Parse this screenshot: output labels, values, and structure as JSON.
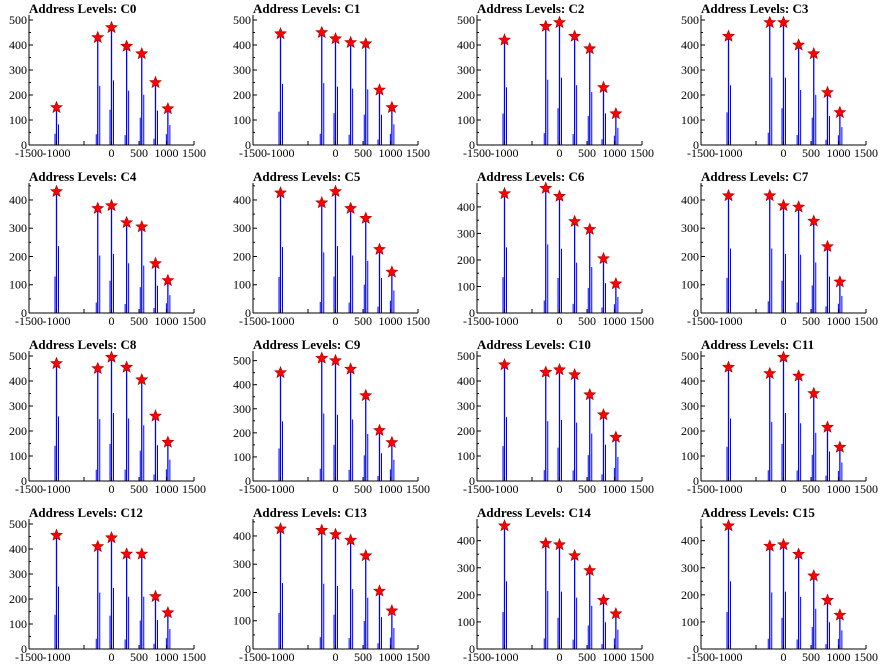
{
  "title_prefix": "Address Levels: ",
  "colors": {
    "spike": "#0000ff",
    "spike_dark": "#000000",
    "star_fill": "#ff0000",
    "star_stroke": "#aa0000",
    "axis": "#000000"
  },
  "x_ticks": [
    -1500,
    -1000,
    -500,
    0,
    500,
    1000,
    1500
  ],
  "x_tick_labels": [
    "-1500",
    "-1000",
    "",
    "0",
    "500",
    "1000",
    "1500"
  ],
  "chart_data": [
    {
      "type": "scatter",
      "title": "Address Levels: C0",
      "xlim": [
        -1500,
        1500
      ],
      "ylim": [
        0,
        520
      ],
      "yticks": [
        0,
        100,
        200,
        300,
        400,
        500
      ],
      "levels": [
        {
          "x": -1000,
          "y": 150
        },
        {
          "x": -250,
          "y": 430
        },
        {
          "x": 0,
          "y": 470
        },
        {
          "x": 275,
          "y": 395
        },
        {
          "x": 550,
          "y": 365
        },
        {
          "x": 800,
          "y": 250
        },
        {
          "x": 1025,
          "y": 145
        }
      ]
    },
    {
      "type": "scatter",
      "title": "Address Levels: C1",
      "xlim": [
        -1500,
        1500
      ],
      "ylim": [
        0,
        520
      ],
      "yticks": [
        0,
        100,
        200,
        300,
        400,
        500
      ],
      "levels": [
        {
          "x": -1000,
          "y": 445
        },
        {
          "x": -250,
          "y": 450
        },
        {
          "x": 0,
          "y": 425
        },
        {
          "x": 275,
          "y": 410
        },
        {
          "x": 550,
          "y": 405
        },
        {
          "x": 800,
          "y": 220
        },
        {
          "x": 1025,
          "y": 150
        }
      ]
    },
    {
      "type": "scatter",
      "title": "Address Levels: C2",
      "xlim": [
        -1500,
        1500
      ],
      "ylim": [
        0,
        520
      ],
      "yticks": [
        0,
        100,
        200,
        300,
        400,
        500
      ],
      "levels": [
        {
          "x": -1000,
          "y": 420
        },
        {
          "x": -250,
          "y": 475
        },
        {
          "x": 0,
          "y": 490
        },
        {
          "x": 275,
          "y": 435
        },
        {
          "x": 550,
          "y": 385
        },
        {
          "x": 800,
          "y": 230
        },
        {
          "x": 1025,
          "y": 125
        }
      ]
    },
    {
      "type": "scatter",
      "title": "Address Levels: C3",
      "xlim": [
        -1500,
        1500
      ],
      "ylim": [
        0,
        520
      ],
      "yticks": [
        0,
        100,
        200,
        300,
        400,
        500
      ],
      "levels": [
        {
          "x": -1000,
          "y": 435
        },
        {
          "x": -250,
          "y": 490
        },
        {
          "x": 0,
          "y": 490
        },
        {
          "x": 275,
          "y": 400
        },
        {
          "x": 550,
          "y": 365
        },
        {
          "x": 800,
          "y": 210
        },
        {
          "x": 1025,
          "y": 130
        }
      ]
    },
    {
      "type": "scatter",
      "title": "Address Levels: C4",
      "xlim": [
        -1500,
        1500
      ],
      "ylim": [
        0,
        460
      ],
      "yticks": [
        0,
        100,
        200,
        300,
        400
      ],
      "levels": [
        {
          "x": -1000,
          "y": 430
        },
        {
          "x": -250,
          "y": 370
        },
        {
          "x": 0,
          "y": 380
        },
        {
          "x": 275,
          "y": 320
        },
        {
          "x": 550,
          "y": 305
        },
        {
          "x": 800,
          "y": 175
        },
        {
          "x": 1025,
          "y": 115
        }
      ]
    },
    {
      "type": "scatter",
      "title": "Address Levels: C5",
      "xlim": [
        -1500,
        1500
      ],
      "ylim": [
        0,
        460
      ],
      "yticks": [
        0,
        100,
        200,
        300,
        400
      ],
      "levels": [
        {
          "x": -1000,
          "y": 425
        },
        {
          "x": -250,
          "y": 390
        },
        {
          "x": 0,
          "y": 430
        },
        {
          "x": 275,
          "y": 370
        },
        {
          "x": 550,
          "y": 335
        },
        {
          "x": 800,
          "y": 225
        },
        {
          "x": 1025,
          "y": 145
        }
      ]
    },
    {
      "type": "scatter",
      "title": "Address Levels: C6",
      "xlim": [
        -1500,
        1500
      ],
      "ylim": [
        0,
        490
      ],
      "yticks": [
        0,
        100,
        200,
        300,
        400
      ],
      "levels": [
        {
          "x": -1000,
          "y": 450
        },
        {
          "x": -250,
          "y": 470
        },
        {
          "x": 0,
          "y": 440
        },
        {
          "x": 275,
          "y": 345
        },
        {
          "x": 550,
          "y": 315
        },
        {
          "x": 800,
          "y": 205
        },
        {
          "x": 1025,
          "y": 110
        }
      ]
    },
    {
      "type": "scatter",
      "title": "Address Levels: C7",
      "xlim": [
        -1500,
        1500
      ],
      "ylim": [
        0,
        460
      ],
      "yticks": [
        0,
        100,
        200,
        300,
        400
      ],
      "levels": [
        {
          "x": -1000,
          "y": 415
        },
        {
          "x": -250,
          "y": 415
        },
        {
          "x": 0,
          "y": 380
        },
        {
          "x": 275,
          "y": 375
        },
        {
          "x": 550,
          "y": 325
        },
        {
          "x": 800,
          "y": 235
        },
        {
          "x": 1025,
          "y": 110
        }
      ]
    },
    {
      "type": "scatter",
      "title": "Address Levels: C8",
      "xlim": [
        -1500,
        1500
      ],
      "ylim": [
        0,
        520
      ],
      "yticks": [
        0,
        100,
        200,
        300,
        400,
        500
      ],
      "levels": [
        {
          "x": -1000,
          "y": 470
        },
        {
          "x": -250,
          "y": 450
        },
        {
          "x": 0,
          "y": 495
        },
        {
          "x": 275,
          "y": 455
        },
        {
          "x": 550,
          "y": 405
        },
        {
          "x": 800,
          "y": 260
        },
        {
          "x": 1025,
          "y": 155
        }
      ]
    },
    {
      "type": "scatter",
      "title": "Address Levels: C9",
      "xlim": [
        -1500,
        1500
      ],
      "ylim": [
        0,
        540
      ],
      "yticks": [
        0,
        100,
        200,
        300,
        400,
        500
      ],
      "levels": [
        {
          "x": -1000,
          "y": 450
        },
        {
          "x": -250,
          "y": 510
        },
        {
          "x": 0,
          "y": 500
        },
        {
          "x": 275,
          "y": 465
        },
        {
          "x": 550,
          "y": 355
        },
        {
          "x": 800,
          "y": 210
        },
        {
          "x": 1025,
          "y": 160
        }
      ]
    },
    {
      "type": "scatter",
      "title": "Address Levels: C10",
      "xlim": [
        -1500,
        1500
      ],
      "ylim": [
        0,
        520
      ],
      "yticks": [
        0,
        100,
        200,
        300,
        400,
        500
      ],
      "levels": [
        {
          "x": -1000,
          "y": 465
        },
        {
          "x": -250,
          "y": 435
        },
        {
          "x": 0,
          "y": 445
        },
        {
          "x": 275,
          "y": 425
        },
        {
          "x": 550,
          "y": 345
        },
        {
          "x": 800,
          "y": 265
        },
        {
          "x": 1025,
          "y": 175
        }
      ]
    },
    {
      "type": "scatter",
      "title": "Address Levels: C11",
      "xlim": [
        -1500,
        1500
      ],
      "ylim": [
        0,
        520
      ],
      "yticks": [
        0,
        100,
        200,
        300,
        400,
        500
      ],
      "levels": [
        {
          "x": -1000,
          "y": 455
        },
        {
          "x": -250,
          "y": 430
        },
        {
          "x": 0,
          "y": 495
        },
        {
          "x": 275,
          "y": 420
        },
        {
          "x": 550,
          "y": 350
        },
        {
          "x": 800,
          "y": 215
        },
        {
          "x": 1025,
          "y": 135
        }
      ]
    },
    {
      "type": "scatter",
      "title": "Address Levels: C12",
      "xlim": [
        -1500,
        1500
      ],
      "ylim": [
        0,
        520
      ],
      "yticks": [
        0,
        100,
        200,
        300,
        400,
        500
      ],
      "levels": [
        {
          "x": -1000,
          "y": 455
        },
        {
          "x": -250,
          "y": 410
        },
        {
          "x": 0,
          "y": 445
        },
        {
          "x": 275,
          "y": 380
        },
        {
          "x": 550,
          "y": 380
        },
        {
          "x": 800,
          "y": 210
        },
        {
          "x": 1025,
          "y": 145
        }
      ]
    },
    {
      "type": "scatter",
      "title": "Address Levels: C13",
      "xlim": [
        -1500,
        1500
      ],
      "ylim": [
        0,
        460
      ],
      "yticks": [
        0,
        100,
        200,
        300,
        400
      ],
      "levels": [
        {
          "x": -1000,
          "y": 425
        },
        {
          "x": -250,
          "y": 420
        },
        {
          "x": 0,
          "y": 405
        },
        {
          "x": 275,
          "y": 385
        },
        {
          "x": 550,
          "y": 330
        },
        {
          "x": 800,
          "y": 205
        },
        {
          "x": 1025,
          "y": 135
        }
      ]
    },
    {
      "type": "scatter",
      "title": "Address Levels: C14",
      "xlim": [
        -1500,
        1500
      ],
      "ylim": [
        0,
        480
      ],
      "yticks": [
        0,
        100,
        200,
        300,
        400
      ],
      "levels": [
        {
          "x": -1000,
          "y": 455
        },
        {
          "x": -250,
          "y": 390
        },
        {
          "x": 0,
          "y": 385
        },
        {
          "x": 275,
          "y": 345
        },
        {
          "x": 550,
          "y": 290
        },
        {
          "x": 800,
          "y": 180
        },
        {
          "x": 1025,
          "y": 130
        }
      ]
    },
    {
      "type": "scatter",
      "title": "Address Levels: C15",
      "xlim": [
        -1500,
        1500
      ],
      "ylim": [
        0,
        480
      ],
      "yticks": [
        0,
        100,
        200,
        300,
        400
      ],
      "levels": [
        {
          "x": -1000,
          "y": 455
        },
        {
          "x": -250,
          "y": 380
        },
        {
          "x": 0,
          "y": 385
        },
        {
          "x": 275,
          "y": 350
        },
        {
          "x": 550,
          "y": 270
        },
        {
          "x": 800,
          "y": 180
        },
        {
          "x": 1025,
          "y": 125
        }
      ]
    }
  ]
}
